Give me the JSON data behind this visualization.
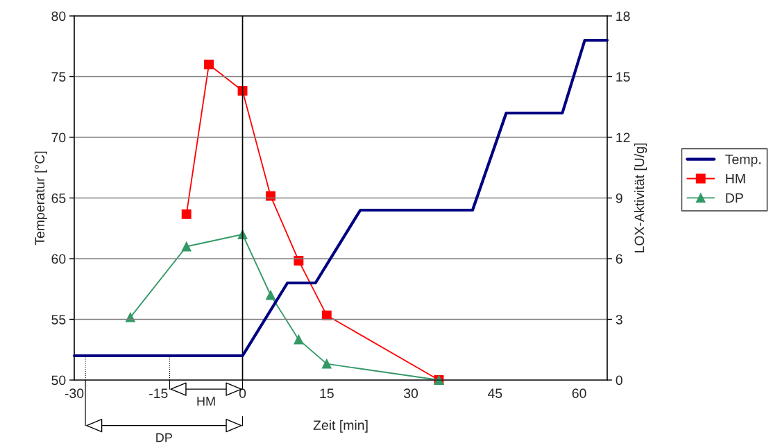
{
  "chart_data": {
    "type": "line",
    "xlabel": "Zeit [min]",
    "ylabel": "Temperatur [°C]",
    "y2label": "LOX-Aktivität [U/g]",
    "xlim": [
      -30,
      65
    ],
    "xticks": [
      -30,
      -15,
      0,
      15,
      30,
      45,
      60
    ],
    "ylim": [
      50,
      80
    ],
    "yticks": [
      50,
      55,
      60,
      65,
      70,
      75,
      80
    ],
    "y2lim": [
      0,
      18
    ],
    "y2ticks": [
      0,
      3,
      6,
      9,
      12,
      15,
      18
    ],
    "grid": "y",
    "legend": "right",
    "series": [
      {
        "name": "Temp.",
        "color": "#000080",
        "marker": "none",
        "x": [
          -30,
          0,
          8,
          13,
          21,
          41,
          47,
          57,
          61,
          65
        ],
        "values": [
          52,
          52,
          58,
          58,
          64,
          64,
          72,
          72,
          78,
          78
        ]
      },
      {
        "name": "HM",
        "color": "#ff0000",
        "marker": "square",
        "axis": "y2",
        "x": [
          -10,
          -6,
          0,
          5,
          10,
          15,
          35
        ],
        "values": [
          8.2,
          15.6,
          14.3,
          9.1,
          5.9,
          3.2,
          0
        ]
      },
      {
        "name": "DP",
        "color": "#339966",
        "marker": "triangle",
        "axis": "y2",
        "x": [
          -20,
          -10,
          0,
          5,
          10,
          15,
          35
        ],
        "values": [
          3.1,
          6.6,
          7.2,
          4.2,
          2.0,
          0.8,
          0
        ]
      }
    ],
    "ref_lines": [
      {
        "axis": "x",
        "value": 0,
        "color": "#000000"
      }
    ],
    "annotations": [
      "HM",
      "DP"
    ]
  }
}
